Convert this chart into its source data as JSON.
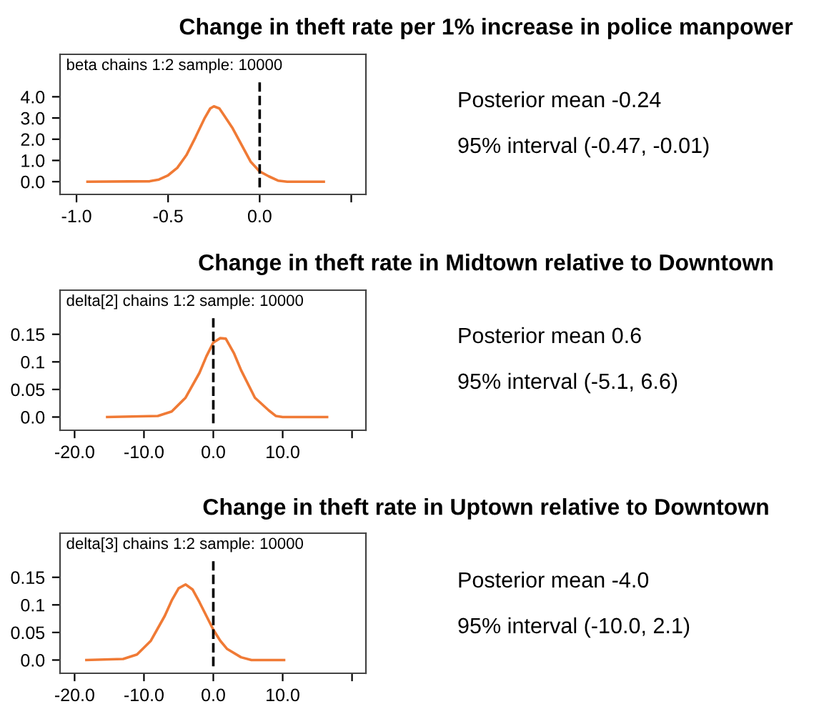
{
  "chart_data": [
    {
      "type": "line",
      "title": "Change in theft rate per 1% increase in police manpower",
      "subtitle": "beta chains 1:2 sample: 10000",
      "x": [
        -0.94,
        -0.6,
        -0.55,
        -0.5,
        -0.45,
        -0.4,
        -0.35,
        -0.3,
        -0.27,
        -0.25,
        -0.22,
        -0.2,
        -0.15,
        -0.1,
        -0.05,
        0.0,
        0.05,
        0.1,
        0.15,
        0.35
      ],
      "series": [
        {
          "color": "#f07a35",
          "values": [
            0,
            0.02,
            0.1,
            0.3,
            0.65,
            1.25,
            2.1,
            3.0,
            3.45,
            3.55,
            3.45,
            3.2,
            2.55,
            1.75,
            0.95,
            0.48,
            0.25,
            0.05,
            0.0,
            0.0
          ]
        }
      ],
      "xlim": [
        -1.09,
        0.58
      ],
      "xticks": [
        {
          "value": -1.0,
          "label": "-1.0"
        },
        {
          "value": -0.5,
          "label": "-0.5"
        },
        {
          "value": 0.0,
          "label": "0.0"
        },
        {
          "value": 0.5,
          "label": null
        }
      ],
      "ylim": [
        -0.6,
        6.0
      ],
      "yticks": [
        {
          "value": 0,
          "label": "0.0"
        },
        {
          "value": 1,
          "label": "1.0"
        },
        {
          "value": 2,
          "label": "2.0"
        },
        {
          "value": 3,
          "label": "3.0"
        },
        {
          "value": 4,
          "label": "4.0"
        }
      ],
      "ref_lines": [
        {
          "axis": "x",
          "value": 0,
          "color": "#000000",
          "line_style": "dashed"
        }
      ],
      "annotations": [
        "Posterior mean -0.24",
        "95% interval (-0.47, -0.01)"
      ],
      "grid": false,
      "legend": false,
      "marker": "none",
      "line_style": "solid"
    },
    {
      "type": "line",
      "title": "Change in theft rate in Midtown relative to Downtown",
      "subtitle": "delta[2] chains 1:2 sample: 10000",
      "x": [
        -15.3,
        -8,
        -6,
        -4,
        -2,
        -1,
        0,
        1,
        1.8,
        3,
        4,
        6,
        8,
        9,
        10,
        16.4
      ],
      "series": [
        {
          "color": "#f07a35",
          "values": [
            0,
            0.002,
            0.01,
            0.035,
            0.08,
            0.11,
            0.135,
            0.143,
            0.142,
            0.115,
            0.085,
            0.035,
            0.012,
            0.002,
            0,
            0
          ]
        }
      ],
      "xlim": [
        -22.1,
        22.0
      ],
      "xticks": [
        {
          "value": -20,
          "label": "-20.0"
        },
        {
          "value": -10,
          "label": "-10.0"
        },
        {
          "value": 0,
          "label": "0.0"
        },
        {
          "value": 10,
          "label": "10.0"
        },
        {
          "value": 20,
          "label": null
        }
      ],
      "ylim": [
        -0.024,
        0.23
      ],
      "yticks": [
        {
          "value": 0,
          "label": "0.0"
        },
        0.05,
        0.1,
        0.15
      ],
      "ref_lines": [
        {
          "axis": "x",
          "value": 0,
          "color": "#000000",
          "line_style": "dashed"
        }
      ],
      "annotations": [
        "Posterior mean 0.6",
        "95% interval (-5.1, 6.6)"
      ],
      "grid": false,
      "legend": false,
      "marker": "none",
      "line_style": "solid"
    },
    {
      "type": "line",
      "title": "Change in theft rate in Uptown relative to Downtown",
      "subtitle": "delta[3] chains 1:2 sample: 10000",
      "x": [
        -18.3,
        -13,
        -11,
        -9,
        -7,
        -6,
        -5,
        -4,
        -3,
        -2,
        -1,
        0,
        1,
        2,
        4,
        5.5,
        10.2
      ],
      "series": [
        {
          "color": "#f07a35",
          "values": [
            0,
            0.002,
            0.01,
            0.035,
            0.08,
            0.108,
            0.13,
            0.137,
            0.128,
            0.105,
            0.08,
            0.055,
            0.035,
            0.02,
            0.005,
            0,
            0
          ]
        }
      ],
      "xlim": [
        -22.1,
        22.0
      ],
      "xticks": [
        {
          "value": -20,
          "label": "-20.0"
        },
        {
          "value": -10,
          "label": "-10.0"
        },
        {
          "value": 0,
          "label": "0.0"
        },
        {
          "value": 10,
          "label": "10.0"
        },
        {
          "value": 20,
          "label": null
        }
      ],
      "ylim": [
        -0.024,
        0.23
      ],
      "yticks": [
        {
          "value": 0,
          "label": "0.0"
        },
        0.05,
        0.1,
        0.15
      ],
      "ref_lines": [
        {
          "axis": "x",
          "value": 0,
          "color": "#000000",
          "line_style": "dashed"
        }
      ],
      "annotations": [
        "Posterior mean -4.0",
        "95% interval (-10.0, 2.1)"
      ],
      "grid": false,
      "legend": false,
      "marker": "none",
      "line_style": "solid"
    }
  ]
}
